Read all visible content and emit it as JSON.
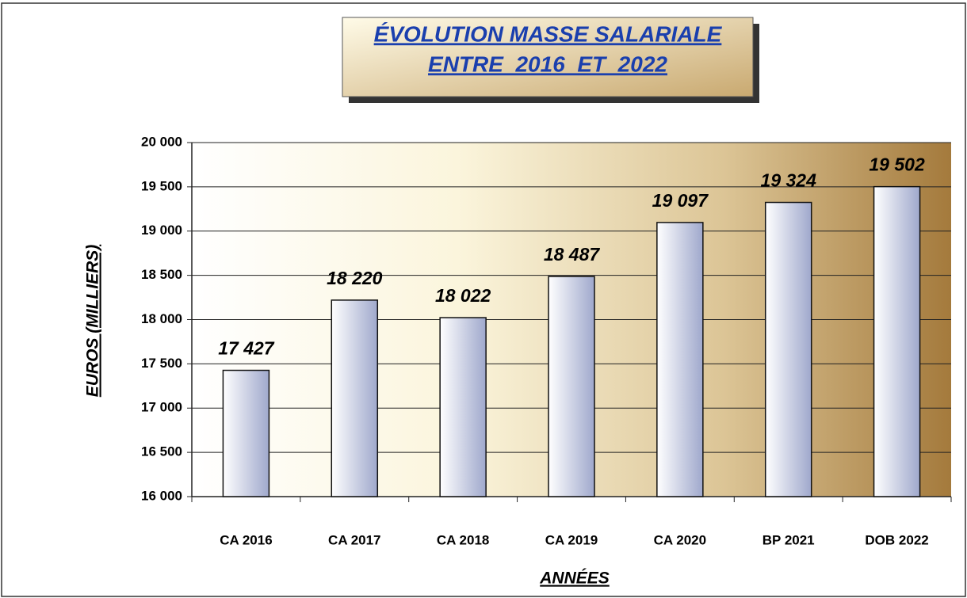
{
  "chart_data": {
    "type": "bar",
    "title_lines": [
      "ÉVOLUTION MASSE SALARIALE",
      "ENTRE  2016  ET  2022"
    ],
    "y_label": "EUROS (MILLIERS)",
    "x_label": "ANNÉES",
    "categories": [
      "CA 2016",
      "CA 2017",
      "CA 2018",
      "CA 2019",
      "CA 2020",
      "BP 2021",
      "DOB 2022"
    ],
    "values": [
      17427,
      18220,
      18022,
      18487,
      19097,
      19324,
      19502
    ],
    "value_labels": [
      "17 427",
      "18 220",
      "18 022",
      "18 487",
      "19 097",
      "19 324",
      "19 502"
    ],
    "color": "#9fa8cc",
    "ylim": [
      16000,
      20000
    ],
    "yticks": [
      {
        "value": 16000,
        "label": "16 000"
      },
      {
        "value": 16500,
        "label": "16 500"
      },
      {
        "value": 17000,
        "label": "17 000"
      },
      {
        "value": 17500,
        "label": "17 500"
      },
      {
        "value": 18000,
        "label": "18 000"
      },
      {
        "value": 18500,
        "label": "18 500"
      },
      {
        "value": 19000,
        "label": "19 000"
      },
      {
        "value": 19500,
        "label": "19 500"
      },
      {
        "value": 20000,
        "label": "20 000"
      }
    ],
    "grid": true
  }
}
